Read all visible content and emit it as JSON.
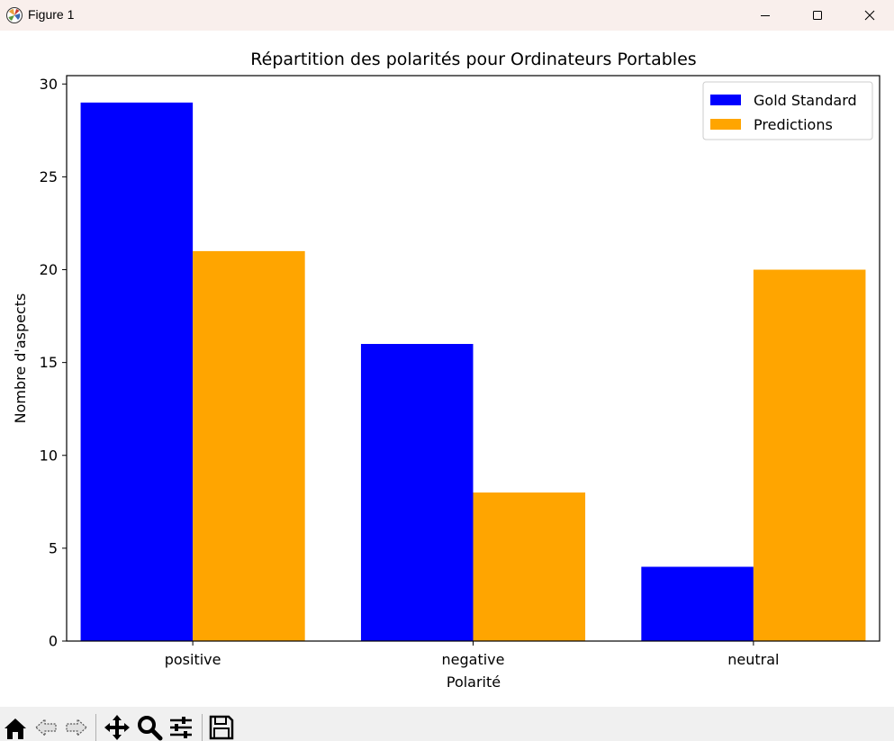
{
  "window": {
    "title": "Figure 1",
    "icons": {
      "app": "matplotlib-figure-icon",
      "minimize": "minimize-icon",
      "maximize": "maximize-icon",
      "close": "close-icon"
    }
  },
  "toolbar": {
    "tools": [
      "home-icon",
      "back-arrow-icon",
      "forward-arrow-icon",
      "pan-move-icon",
      "zoom-magnifier-icon",
      "configure-subplots-icon",
      "save-icon"
    ]
  },
  "chart_data": {
    "type": "bar",
    "title": "Répartition des polarités pour Ordinateurs Portables",
    "xlabel": "Polarité",
    "ylabel": "Nombre d'aspects",
    "categories": [
      "positive",
      "negative",
      "neutral"
    ],
    "series": [
      {
        "name": "Gold Standard",
        "color": "#0000ff",
        "values": [
          29,
          16,
          4
        ]
      },
      {
        "name": "Predictions",
        "color": "#ffa500",
        "values": [
          21,
          8,
          20
        ]
      }
    ],
    "ylim": [
      0,
      30.45
    ],
    "yticks": [
      0,
      5,
      10,
      15,
      20,
      25,
      30
    ],
    "grid": false,
    "legend_position": "top-right"
  }
}
